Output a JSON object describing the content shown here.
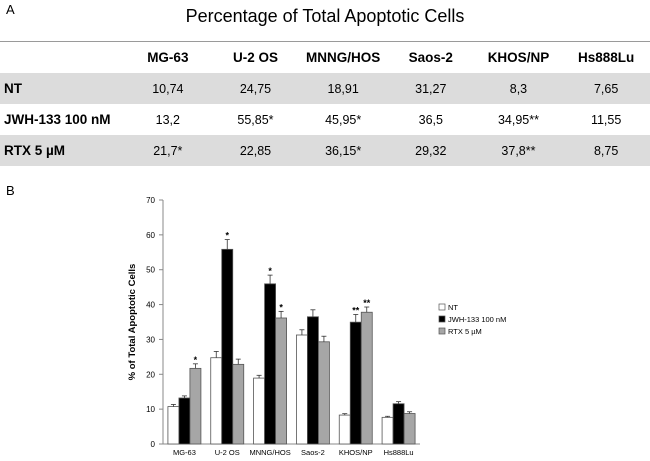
{
  "panel_a_label": "A",
  "panel_b_label": "B",
  "table": {
    "title": "Percentage of Total Apoptotic Cells",
    "columns": [
      "MG-63",
      "U-2 OS",
      "MNNG/HOS",
      "Saos-2",
      "KHOS/NP",
      "Hs888Lu"
    ],
    "rows": [
      {
        "label": "NT",
        "cells": [
          "10,74",
          "24,75",
          "18,91",
          "31,27",
          "8,3",
          "7,65"
        ]
      },
      {
        "label": "JWH-133 100 nM",
        "cells": [
          "13,2",
          "55,85*",
          "45,95*",
          "36,5",
          "34,95**",
          "11,55"
        ]
      },
      {
        "label": "RTX 5 µM",
        "cells": [
          "21,7*",
          "22,85",
          "36,15*",
          "29,32",
          "37,8**",
          "8,75"
        ]
      }
    ]
  },
  "chart_data": {
    "type": "bar",
    "ylabel": "% of Total Apoptotic Cells",
    "xlabel": "",
    "ylim": [
      0,
      70
    ],
    "yticks": [
      0,
      10,
      20,
      30,
      40,
      50,
      60,
      70
    ],
    "categories": [
      "MG-63",
      "U-2 OS",
      "MNNG/HOS",
      "Saos-2",
      "KHOS/NP",
      "Hs888Lu"
    ],
    "series": [
      {
        "name": "NT",
        "color": "#ffffff",
        "values": [
          10.74,
          24.75,
          18.91,
          31.27,
          8.3,
          7.65
        ],
        "errors": [
          0.6,
          1.8,
          0.8,
          1.5,
          0.4,
          0.3
        ],
        "stars": [
          "",
          "",
          "",
          "",
          "",
          ""
        ]
      },
      {
        "name": "JWH-133 100 nM",
        "color": "#000000",
        "values": [
          13.2,
          55.85,
          45.95,
          36.5,
          34.95,
          11.55
        ],
        "errors": [
          0.6,
          2.8,
          2.5,
          2.0,
          2.2,
          0.6
        ],
        "stars": [
          "",
          "*",
          "*",
          "",
          "**",
          ""
        ]
      },
      {
        "name": "RTX 5 µM",
        "color": "#a6a6a6",
        "values": [
          21.7,
          22.85,
          36.15,
          29.32,
          37.8,
          8.75
        ],
        "errors": [
          1.3,
          1.5,
          1.9,
          1.6,
          1.5,
          0.5
        ],
        "stars": [
          "*",
          "",
          "*",
          "",
          "**",
          ""
        ]
      }
    ]
  }
}
